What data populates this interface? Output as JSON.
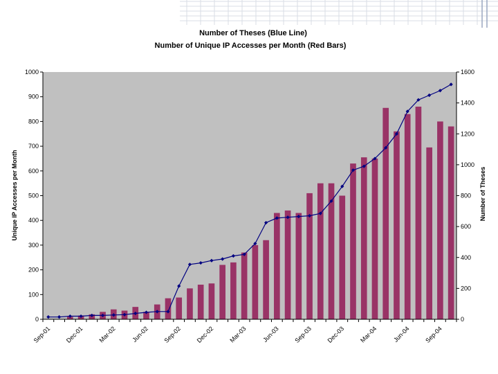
{
  "chart_data": {
    "type": "bar+line",
    "title": "Number of Theses (Blue Line)",
    "subtitle": "Number of Unique IP Accesses per Month (Red Bars)",
    "ylabel_left": "Unique IP Accesses per Month",
    "ylabel_right": "Number of Theses",
    "ylim_left": [
      0,
      1000
    ],
    "ylim_right": [
      0,
      1600
    ],
    "yticks_left": [
      "0",
      "100",
      "200",
      "300",
      "400",
      "500",
      "600",
      "700",
      "800",
      "900",
      "1000"
    ],
    "yticks_right": [
      "0",
      "200",
      "400",
      "600",
      "800",
      "1000",
      "1200",
      "1400",
      "1600"
    ],
    "xtick_labels": [
      "Sep-01",
      "Dec-01",
      "Mar-02",
      "Jun-02",
      "Sep-02",
      "Dec-02",
      "Mar-03",
      "Jun-03",
      "Sep-03",
      "Dec-03",
      "Mar-04",
      "Jun-04",
      "Sep-04"
    ],
    "n_months": 38,
    "bar_series": {
      "name": "Unique IP Accesses per Month",
      "color": "#993366",
      "values": [
        0,
        0,
        10,
        15,
        20,
        30,
        40,
        35,
        50,
        30,
        60,
        85,
        88,
        125,
        140,
        145,
        220,
        230,
        270,
        300,
        320,
        430,
        440,
        430,
        510,
        550,
        550,
        500,
        630,
        655,
        650,
        855,
        760,
        830,
        860,
        695,
        800,
        780
      ]
    },
    "line_series": {
      "name": "Number of Theses",
      "color": "#000080",
      "values": [
        15,
        15,
        20,
        20,
        25,
        25,
        28,
        30,
        38,
        45,
        50,
        50,
        215,
        355,
        365,
        380,
        390,
        410,
        420,
        490,
        625,
        655,
        660,
        665,
        670,
        685,
        765,
        860,
        965,
        990,
        1040,
        1110,
        1200,
        1345,
        1420,
        1450,
        1480,
        1520
      ]
    },
    "grid": false,
    "plot_background": "#c0c0c0"
  }
}
